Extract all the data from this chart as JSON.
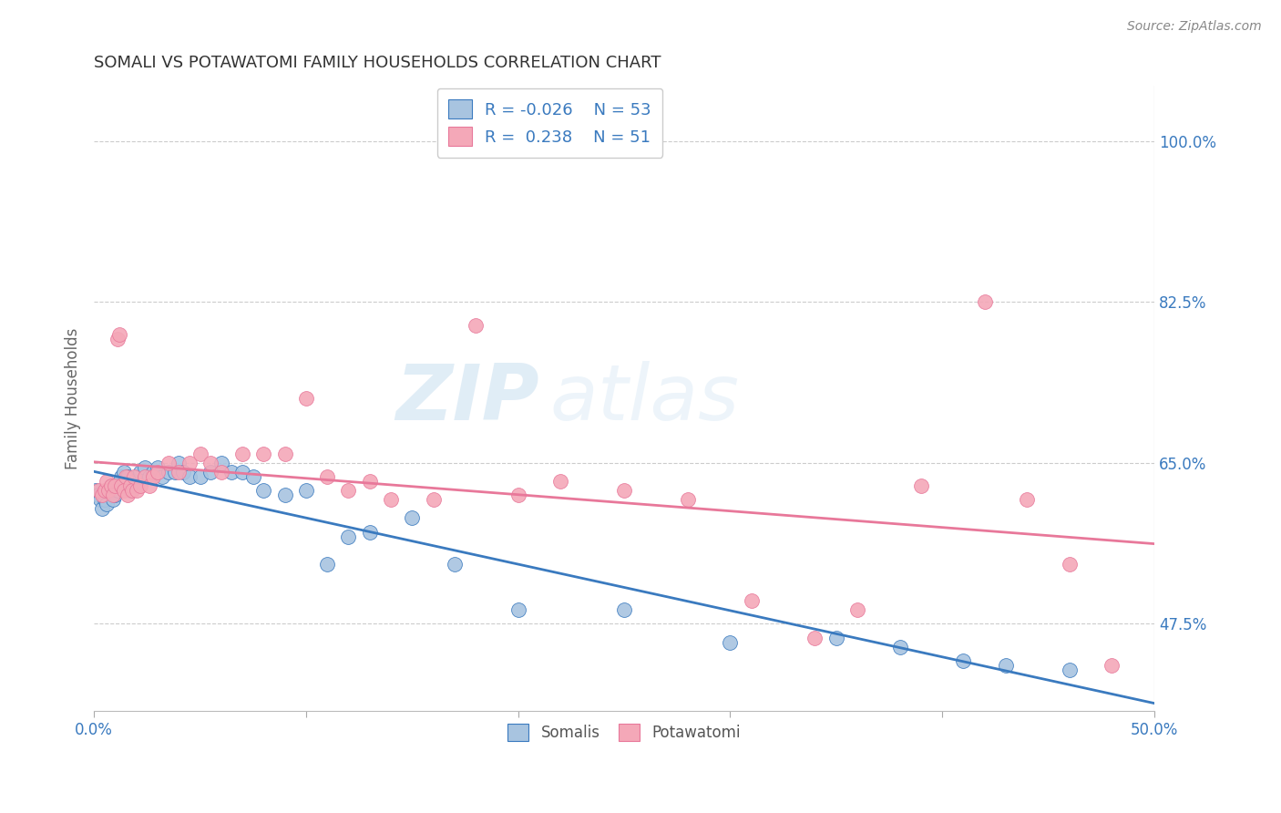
{
  "title": "SOMALI VS POTAWATOMI FAMILY HOUSEHOLDS CORRELATION CHART",
  "source": "Source: ZipAtlas.com",
  "ylabel": "Family Households",
  "ytick_labels": [
    "47.5%",
    "65.0%",
    "82.5%",
    "100.0%"
  ],
  "ytick_values": [
    0.475,
    0.65,
    0.825,
    1.0
  ],
  "xlim": [
    0.0,
    0.5
  ],
  "ylim": [
    0.38,
    1.06
  ],
  "somali_color": "#a8c4e0",
  "potawatomi_color": "#f4a8b8",
  "somali_line_color": "#3a7abf",
  "potawatomi_line_color": "#e8789a",
  "watermark_zip": "ZIP",
  "watermark_atlas": "atlas",
  "somali_x": [
    0.001,
    0.002,
    0.003,
    0.004,
    0.005,
    0.006,
    0.007,
    0.008,
    0.009,
    0.01,
    0.011,
    0.012,
    0.013,
    0.014,
    0.015,
    0.016,
    0.017,
    0.018,
    0.019,
    0.02,
    0.022,
    0.024,
    0.026,
    0.028,
    0.03,
    0.032,
    0.035,
    0.038,
    0.04,
    0.042,
    0.045,
    0.05,
    0.055,
    0.06,
    0.065,
    0.07,
    0.075,
    0.08,
    0.09,
    0.1,
    0.11,
    0.12,
    0.13,
    0.15,
    0.17,
    0.2,
    0.25,
    0.3,
    0.35,
    0.38,
    0.41,
    0.43,
    0.46
  ],
  "somali_y": [
    0.62,
    0.615,
    0.61,
    0.6,
    0.61,
    0.605,
    0.62,
    0.625,
    0.61,
    0.615,
    0.62,
    0.625,
    0.635,
    0.64,
    0.625,
    0.635,
    0.62,
    0.625,
    0.63,
    0.625,
    0.64,
    0.645,
    0.635,
    0.64,
    0.645,
    0.635,
    0.64,
    0.64,
    0.65,
    0.64,
    0.635,
    0.635,
    0.64,
    0.65,
    0.64,
    0.64,
    0.635,
    0.62,
    0.615,
    0.62,
    0.54,
    0.57,
    0.575,
    0.59,
    0.54,
    0.49,
    0.49,
    0.455,
    0.46,
    0.45,
    0.435,
    0.43,
    0.425
  ],
  "potawatomi_x": [
    0.002,
    0.004,
    0.005,
    0.006,
    0.007,
    0.008,
    0.009,
    0.01,
    0.011,
    0.012,
    0.013,
    0.014,
    0.015,
    0.016,
    0.017,
    0.018,
    0.019,
    0.02,
    0.022,
    0.024,
    0.026,
    0.028,
    0.03,
    0.035,
    0.04,
    0.045,
    0.05,
    0.055,
    0.06,
    0.07,
    0.08,
    0.09,
    0.1,
    0.11,
    0.12,
    0.13,
    0.14,
    0.16,
    0.18,
    0.2,
    0.22,
    0.25,
    0.28,
    0.31,
    0.34,
    0.36,
    0.39,
    0.42,
    0.44,
    0.46,
    0.48
  ],
  "potawatomi_y": [
    0.62,
    0.615,
    0.62,
    0.63,
    0.62,
    0.625,
    0.615,
    0.625,
    0.785,
    0.79,
    0.625,
    0.62,
    0.635,
    0.615,
    0.625,
    0.62,
    0.635,
    0.62,
    0.625,
    0.635,
    0.625,
    0.635,
    0.64,
    0.65,
    0.64,
    0.65,
    0.66,
    0.65,
    0.64,
    0.66,
    0.66,
    0.66,
    0.72,
    0.635,
    0.62,
    0.63,
    0.61,
    0.61,
    0.8,
    0.615,
    0.63,
    0.62,
    0.61,
    0.5,
    0.46,
    0.49,
    0.625,
    0.825,
    0.61,
    0.54,
    0.43
  ]
}
